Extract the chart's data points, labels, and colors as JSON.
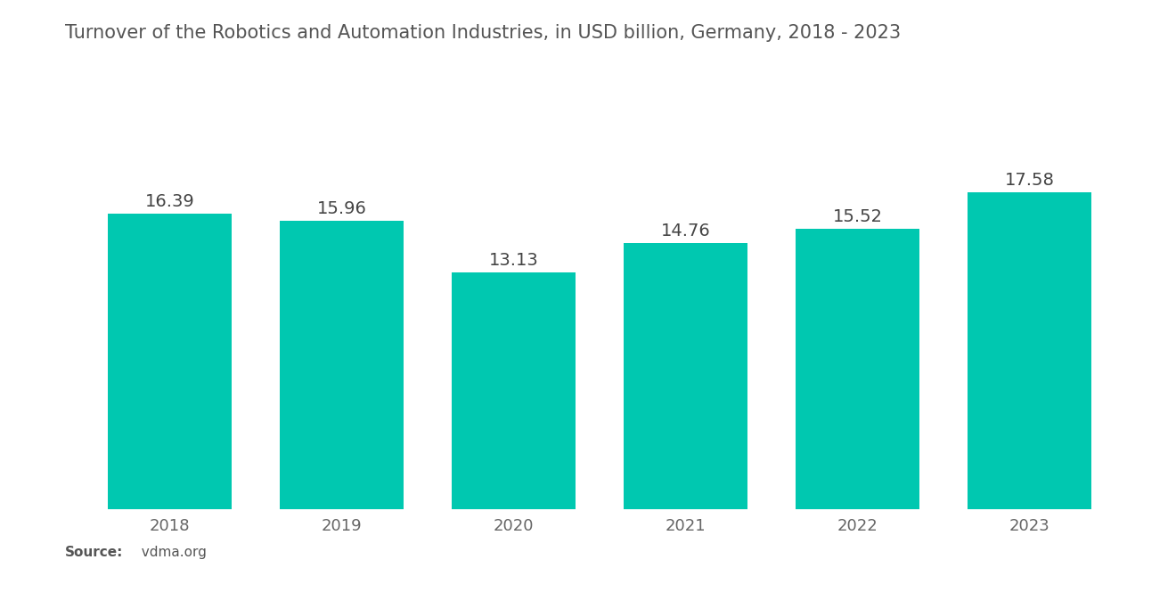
{
  "title": "Turnover of the Robotics and Automation Industries, in USD billion, Germany, 2018 - 2023",
  "categories": [
    "2018",
    "2019",
    "2020",
    "2021",
    "2022",
    "2023"
  ],
  "values": [
    16.39,
    15.96,
    13.13,
    14.76,
    15.52,
    17.58
  ],
  "bar_color": "#00C8B0",
  "background_color": "#ffffff",
  "title_fontsize": 15,
  "label_fontsize": 14,
  "tick_fontsize": 13,
  "source_text": "Source:  vdma.org",
  "source_bold": "Source:",
  "ylim": [
    0,
    21
  ],
  "bar_width": 0.72,
  "title_color": "#555555",
  "tick_color": "#666666",
  "label_color": "#444444"
}
